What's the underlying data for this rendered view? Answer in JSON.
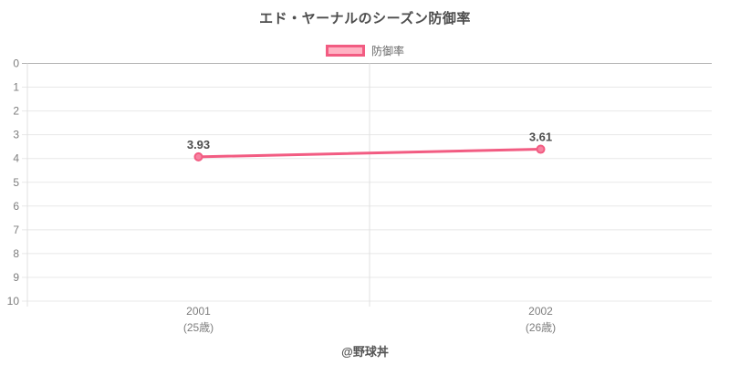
{
  "header": {
    "title": "エド・ヤーナルのシーズン防御率"
  },
  "legend": {
    "label": "防御率"
  },
  "footer": {
    "credit": "@野球丼"
  },
  "chart_data": {
    "type": "line",
    "title": "エド・ヤーナルのシーズン防御率",
    "categories": [
      "2001",
      "2002"
    ],
    "category_sublabels": [
      "(25歳)",
      "(26歳)"
    ],
    "series": [
      {
        "name": "防御率",
        "values": [
          3.93,
          3.61
        ],
        "point_labels": [
          "3.93",
          "3.61"
        ]
      }
    ],
    "y_axis": {
      "min": 0,
      "max": 10,
      "ticks": [
        0,
        1,
        2,
        3,
        4,
        5,
        6,
        7,
        8,
        9,
        10
      ],
      "reversed": true
    },
    "legend_position": "top",
    "grid": true,
    "colors": {
      "line": "#f25c82",
      "point_fill": "#f783a1",
      "legend_fill": "#ffb2c3",
      "grid": "#e8e8e8",
      "zero_line": "#b3b3b3",
      "axis_line": "#e0e0e0",
      "title_text": "#4d4d4d",
      "tick_text": "#7d7d7d",
      "value_label_text": "#4d4d4d",
      "legend_text": "#666666",
      "footer_text": "#555555"
    }
  }
}
